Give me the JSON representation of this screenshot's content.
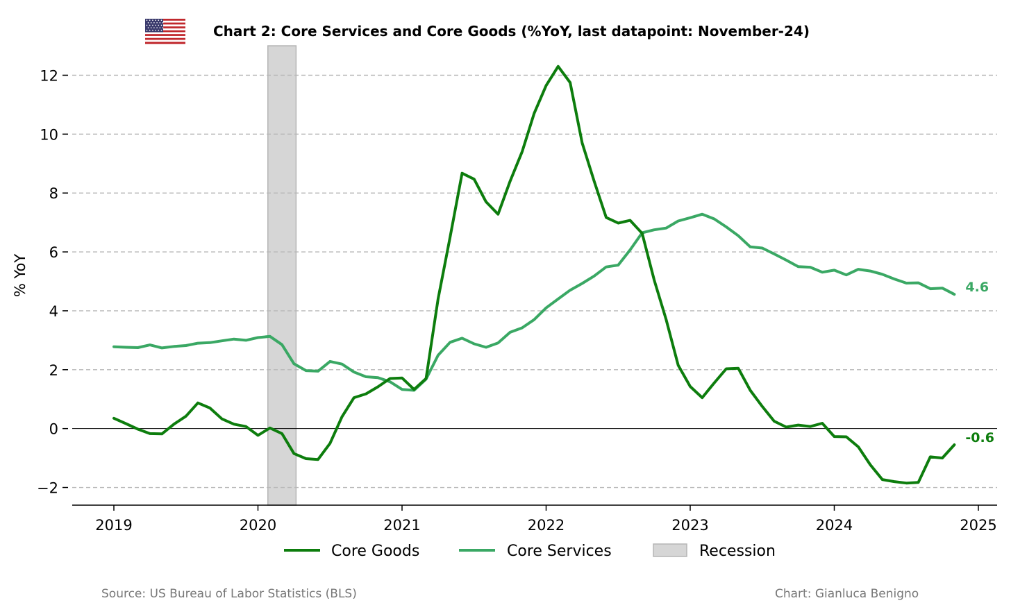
{
  "colors": {
    "core_goods": "#0d7d0d",
    "core_services": "#3aa864",
    "recession_fill": "#d6d6d6",
    "recession_stroke": "#b5b5b5",
    "grid": "#b8b8b8",
    "footer_text": "#777777"
  },
  "header": {
    "flag_icon": "us-flag-icon",
    "title": "Chart 2: Core Services and Core Goods (%YoY, last datapoint: November-24)"
  },
  "footer": {
    "source": "Source: US Bureau of Labor Statistics (BLS)",
    "credit": "Chart: Gianluca Benigno"
  },
  "chart_data": {
    "type": "line",
    "title": "Chart 2: Core Services and Core Goods (%YoY, last datapoint: November-24)",
    "ylabel": "% YoY",
    "xlabel": "",
    "xlim": [
      "2018-09",
      "2025-02"
    ],
    "ylim": [
      -2.6,
      13.0
    ],
    "x_ticks": [
      "2019",
      "2020",
      "2021",
      "2022",
      "2023",
      "2024",
      "2025"
    ],
    "y_ticks": [
      -2,
      0,
      2,
      4,
      6,
      8,
      10,
      12
    ],
    "grid": "horizontal dashed",
    "zero_line": true,
    "legend_position": "bottom-center",
    "legend": [
      "Core Goods",
      "Core Services",
      "Recession"
    ],
    "recession": {
      "start": "2020-02",
      "end": "2020-04"
    },
    "x": [
      "2019-01",
      "2019-02",
      "2019-03",
      "2019-04",
      "2019-05",
      "2019-06",
      "2019-07",
      "2019-08",
      "2019-09",
      "2019-10",
      "2019-11",
      "2019-12",
      "2020-01",
      "2020-02",
      "2020-03",
      "2020-04",
      "2020-05",
      "2020-06",
      "2020-07",
      "2020-08",
      "2020-09",
      "2020-10",
      "2020-11",
      "2020-12",
      "2021-01",
      "2021-02",
      "2021-03",
      "2021-04",
      "2021-05",
      "2021-06",
      "2021-07",
      "2021-08",
      "2021-09",
      "2021-10",
      "2021-11",
      "2021-12",
      "2022-01",
      "2022-02",
      "2022-03",
      "2022-04",
      "2022-05",
      "2022-06",
      "2022-07",
      "2022-08",
      "2022-09",
      "2022-10",
      "2022-11",
      "2022-12",
      "2023-01",
      "2023-02",
      "2023-03",
      "2023-04",
      "2023-05",
      "2023-06",
      "2023-07",
      "2023-08",
      "2023-09",
      "2023-10",
      "2023-11",
      "2023-12",
      "2024-01",
      "2024-02",
      "2024-03",
      "2024-04",
      "2024-05",
      "2024-06",
      "2024-07",
      "2024-08",
      "2024-09",
      "2024-10",
      "2024-11"
    ],
    "series": [
      {
        "name": "Core Goods",
        "color": "#0d7d0d",
        "end_label": "-0.6",
        "values": [
          0.35,
          0.17,
          -0.02,
          -0.17,
          -0.18,
          0.15,
          0.42,
          0.87,
          0.7,
          0.33,
          0.15,
          0.07,
          -0.23,
          0.02,
          -0.17,
          -0.85,
          -1.02,
          -1.05,
          -0.5,
          0.4,
          1.05,
          1.18,
          1.42,
          1.7,
          1.72,
          1.33,
          1.7,
          4.4,
          6.5,
          8.67,
          8.47,
          7.7,
          7.28,
          8.4,
          9.4,
          10.7,
          11.65,
          12.3,
          11.75,
          9.7,
          8.4,
          7.17,
          6.98,
          7.07,
          6.63,
          5.05,
          3.7,
          2.15,
          1.43,
          1.05,
          1.55,
          2.03,
          2.05,
          1.3,
          0.75,
          0.25,
          0.05,
          0.12,
          0.07,
          0.18,
          -0.27,
          -0.28,
          -0.62,
          -1.23,
          -1.73,
          -1.8,
          -1.85,
          -1.83,
          -0.96,
          -1.0,
          -0.55
        ]
      },
      {
        "name": "Core Services",
        "color": "#3aa864",
        "end_label": "4.6",
        "values": [
          2.78,
          2.76,
          2.75,
          2.84,
          2.74,
          2.79,
          2.82,
          2.9,
          2.92,
          2.98,
          3.04,
          3.0,
          3.09,
          3.13,
          2.85,
          2.2,
          1.97,
          1.95,
          2.28,
          2.19,
          1.92,
          1.76,
          1.73,
          1.59,
          1.33,
          1.3,
          1.68,
          2.49,
          2.93,
          3.07,
          2.88,
          2.76,
          2.91,
          3.27,
          3.42,
          3.7,
          4.1,
          4.4,
          4.7,
          4.93,
          5.18,
          5.49,
          5.55,
          6.07,
          6.65,
          6.75,
          6.81,
          7.05,
          7.16,
          7.28,
          7.12,
          6.85,
          6.55,
          6.17,
          6.13,
          5.93,
          5.72,
          5.5,
          5.48,
          5.31,
          5.38,
          5.22,
          5.41,
          5.35,
          5.24,
          5.08,
          4.94,
          4.95,
          4.75,
          4.77,
          4.56
        ]
      }
    ]
  }
}
